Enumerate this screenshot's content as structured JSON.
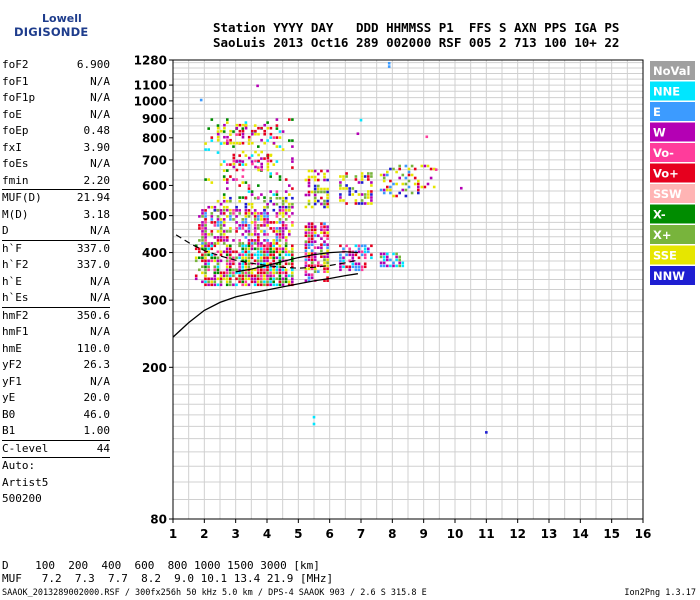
{
  "logo": {
    "line1": "Lowell",
    "line2": "DIGISONDE"
  },
  "header": {
    "line1": "Station YYYY DAY   DDD HHMMSS P1  FFS S AXN PPS IGA PS",
    "line2": "SaoLuis 2013 Oct16 289 002000 RSF 005 2 713 100 10+ 22"
  },
  "params": [
    {
      "name": "foF2",
      "value": "6.900"
    },
    {
      "name": "foF1",
      "value": "N/A"
    },
    {
      "name": "foF1p",
      "value": "N/A"
    },
    {
      "name": "foE",
      "value": "N/A"
    },
    {
      "name": "foEp",
      "value": "0.48"
    },
    {
      "name": "fxI",
      "value": "3.90"
    },
    {
      "name": "foEs",
      "value": "N/A"
    },
    {
      "name": "fmin",
      "value": "2.20"
    },
    {
      "name": "MUF(D)",
      "value": "21.94",
      "sep": true
    },
    {
      "name": "M(D)",
      "value": "3.18"
    },
    {
      "name": "D",
      "value": "N/A"
    },
    {
      "name": "h`F",
      "value": "337.0",
      "sep": true
    },
    {
      "name": "h`F2",
      "value": "337.0"
    },
    {
      "name": "h`E",
      "value": "N/A"
    },
    {
      "name": "h`Es",
      "value": "N/A"
    },
    {
      "name": "hmF2",
      "value": "350.6",
      "sep": true
    },
    {
      "name": "hmF1",
      "value": "N/A"
    },
    {
      "name": "hmE",
      "value": "110.0"
    },
    {
      "name": "yF2",
      "value": "26.3"
    },
    {
      "name": "yF1",
      "value": "N/A"
    },
    {
      "name": "yE",
      "value": "20.0"
    },
    {
      "name": "B0",
      "value": "46.0"
    },
    {
      "name": "B1",
      "value": "1.00"
    },
    {
      "name": "C-level",
      "value": "44",
      "sep": true
    }
  ],
  "autoscale": {
    "line1": "Auto:",
    "line2": "Artist5",
    "line3": "500200"
  },
  "muf_table": {
    "d_line": "D    100  200  400  600  800 1000 1500 3000 [km]",
    "muf_line": "MUF   7.2  7.3  7.7  8.2  9.0 10.1 13.4 21.9 [MHz]"
  },
  "footer": "SAAOK_2013289002000.RSF / 300fx256h 50 kHz 5.0 km / DPS-4 SAAOK 903 / 2.6 S 315.8 E",
  "version": "Ion2Png 1.3.17",
  "colors": {
    "NoVal": "#a0a0a0",
    "NNE": "#00e6ff",
    "E": "#3c9bff",
    "W": "#b400b4",
    "Vo-": "#ff3c9b",
    "Vo+": "#e6001e",
    "SSW": "#ffb4b4",
    "X-": "#008c00",
    "X+": "#78b43c",
    "SSE": "#e6e600",
    "NNW": "#1e1ed2"
  },
  "chart_data": {
    "type": "scatter",
    "xlabel": "",
    "ylabel": "",
    "xlim": [
      1,
      16
    ],
    "ylim": [
      80,
      1280
    ],
    "x_ticks": [
      1,
      2,
      3,
      4,
      5,
      6,
      7,
      8,
      9,
      10,
      11,
      12,
      13,
      14,
      15,
      16
    ],
    "y_ticks": [
      80,
      200,
      300,
      400,
      500,
      600,
      700,
      800,
      900,
      1000,
      1100,
      1280
    ],
    "y_scale": "log",
    "grid": true,
    "legend": [
      "NoVal",
      "NNE",
      "E",
      "W",
      "Vo-",
      "Vo+",
      "SSW",
      "X-",
      "X+",
      "SSE",
      "NNW"
    ],
    "legend_position": "right",
    "echo_clusters": [
      {
        "x0": 1.7,
        "x1": 4.8,
        "y0": 330,
        "y1": 420,
        "density": 0.85,
        "mix": [
          "Vo+",
          "Vo+",
          "Vo-",
          "W",
          "X+",
          "SSE",
          "NNE",
          "X-"
        ]
      },
      {
        "x0": 1.8,
        "x1": 4.8,
        "y0": 420,
        "y1": 520,
        "density": 0.55,
        "mix": [
          "W",
          "W",
          "Vo-",
          "Vo+",
          "SSE",
          "X+",
          "E"
        ]
      },
      {
        "x0": 2.0,
        "x1": 4.8,
        "y0": 520,
        "y1": 560,
        "density": 0.45,
        "mix": [
          "SSE",
          "SSE",
          "X+",
          "W",
          "NNW"
        ]
      },
      {
        "x0": 2.0,
        "x1": 4.8,
        "y0": 560,
        "y1": 900,
        "density": 0.18,
        "mix": [
          "Vo+",
          "W",
          "SSE",
          "Vo-",
          "NNE",
          "X-"
        ]
      },
      {
        "x0": 2.4,
        "x1": 4.2,
        "y0": 780,
        "y1": 870,
        "density": 0.35,
        "mix": [
          "SSE",
          "SSE",
          "Vo+",
          "W"
        ]
      },
      {
        "x0": 2.9,
        "x1": 4.2,
        "y0": 660,
        "y1": 740,
        "density": 0.35,
        "mix": [
          "Vo+",
          "W",
          "SSE",
          "Vo-"
        ]
      },
      {
        "x0": 5.2,
        "x1": 5.9,
        "y0": 340,
        "y1": 480,
        "density": 0.6,
        "mix": [
          "Vo+",
          "Vo-",
          "SSE",
          "W",
          "E",
          "X+"
        ]
      },
      {
        "x0": 5.2,
        "x1": 5.9,
        "y0": 530,
        "y1": 660,
        "density": 0.45,
        "mix": [
          "SSE",
          "SSE",
          "X+",
          "W",
          "Vo+",
          "NNW"
        ]
      },
      {
        "x0": 6.3,
        "x1": 7.3,
        "y0": 360,
        "y1": 420,
        "density": 0.55,
        "mix": [
          "E",
          "NNE",
          "Vo-",
          "W",
          "Vo+"
        ]
      },
      {
        "x0": 6.3,
        "x1": 7.3,
        "y0": 540,
        "y1": 650,
        "density": 0.5,
        "mix": [
          "SSE",
          "SSE",
          "X+",
          "W",
          "NNW",
          "Vo+"
        ]
      },
      {
        "x0": 7.6,
        "x1": 8.3,
        "y0": 370,
        "y1": 400,
        "density": 0.55,
        "mix": [
          "NNE",
          "E",
          "X+",
          "W"
        ]
      },
      {
        "x0": 7.6,
        "x1": 8.8,
        "y0": 560,
        "y1": 680,
        "density": 0.4,
        "mix": [
          "SSE",
          "SSE",
          "W",
          "Vo+",
          "NNW",
          "E",
          "X+"
        ]
      },
      {
        "x0": 8.9,
        "x1": 9.3,
        "y0": 590,
        "y1": 680,
        "density": 0.3,
        "mix": [
          "SSE",
          "W",
          "Vo+"
        ]
      }
    ],
    "stray_points": [
      {
        "x": 1.9,
        "y": 1005,
        "c": "E"
      },
      {
        "x": 3.7,
        "y": 1095,
        "c": "W"
      },
      {
        "x": 7.9,
        "y": 1255,
        "c": "E"
      },
      {
        "x": 7.9,
        "y": 1230,
        "c": "E"
      },
      {
        "x": 10.2,
        "y": 590,
        "c": "W"
      },
      {
        "x": 11.0,
        "y": 135,
        "c": "NNW"
      },
      {
        "x": 5.5,
        "y": 148,
        "c": "NNE"
      },
      {
        "x": 5.5,
        "y": 142,
        "c": "NNE"
      },
      {
        "x": 9.4,
        "y": 660,
        "c": "Vo-"
      },
      {
        "x": 9.1,
        "y": 805,
        "c": "Vo-"
      },
      {
        "x": 7.0,
        "y": 890,
        "c": "NNE"
      },
      {
        "x": 6.9,
        "y": 820,
        "c": "W"
      }
    ],
    "profile_curve": {
      "x": [
        1.0,
        1.5,
        2.0,
        2.5,
        3.0,
        3.5,
        4.0,
        4.5,
        5.0,
        5.5,
        6.0,
        6.5,
        6.9
      ],
      "y": [
        240,
        262,
        282,
        296,
        306,
        313,
        319,
        325,
        331,
        337,
        342,
        348,
        352
      ]
    },
    "trace_dashed": {
      "x": [
        1.1,
        1.6,
        2.0,
        2.5,
        3.0,
        3.5,
        4.0,
        4.5,
        5.0,
        5.5,
        6.0,
        6.5,
        6.9
      ],
      "y": [
        445,
        420,
        405,
        392,
        382,
        375,
        370,
        366,
        364,
        366,
        370,
        376,
        382
      ]
    },
    "trace_solid": {
      "x": [
        3.0,
        3.5,
        4.0,
        4.5,
        5.0,
        5.5,
        6.0,
        6.5,
        6.9
      ],
      "y": [
        356,
        362,
        370,
        379,
        388,
        395,
        400,
        402,
        400
      ]
    }
  }
}
